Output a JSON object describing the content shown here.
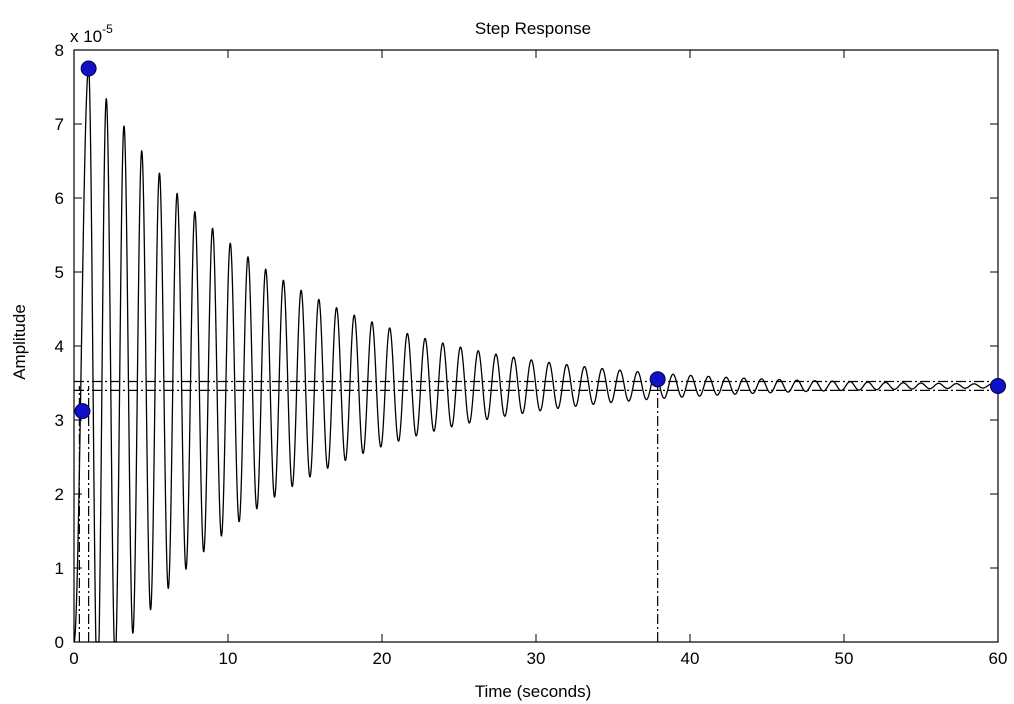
{
  "chart_data": {
    "type": "line",
    "title": "Step Response",
    "xlabel": "Time (seconds)",
    "ylabel": "Amplitude",
    "exponent_label": "x 10",
    "exponent_power": "-5",
    "xlim": [
      0,
      60
    ],
    "ylim": [
      0,
      8
    ],
    "xticks": [
      "0",
      "10",
      "20",
      "30",
      "40",
      "50",
      "60"
    ],
    "yticks": [
      "0",
      "1",
      "2",
      "3",
      "4",
      "5",
      "6",
      "7",
      "8"
    ],
    "grid": false,
    "final_value": 3.46,
    "settling_band": [
      3.4,
      3.52
    ],
    "peak_time": 0.95,
    "peak_amplitude": 7.75,
    "oscillation_period": 1.15,
    "decay_time_constant": 11.5,
    "characteristic_points": [
      {
        "x": 0.55,
        "y": 3.12
      },
      {
        "x": 0.95,
        "y": 7.75
      },
      {
        "x": 37.9,
        "y": 3.55
      },
      {
        "x": 60.0,
        "y": 3.46
      }
    ],
    "reference_lines": [
      {
        "orientation": "vertical",
        "x": 0.35
      },
      {
        "orientation": "vertical",
        "x": 0.95
      },
      {
        "orientation": "vertical",
        "x": 37.9
      }
    ],
    "colors": {
      "response": "#000000",
      "marker": "#1010c8",
      "reference": "#000000"
    }
  }
}
